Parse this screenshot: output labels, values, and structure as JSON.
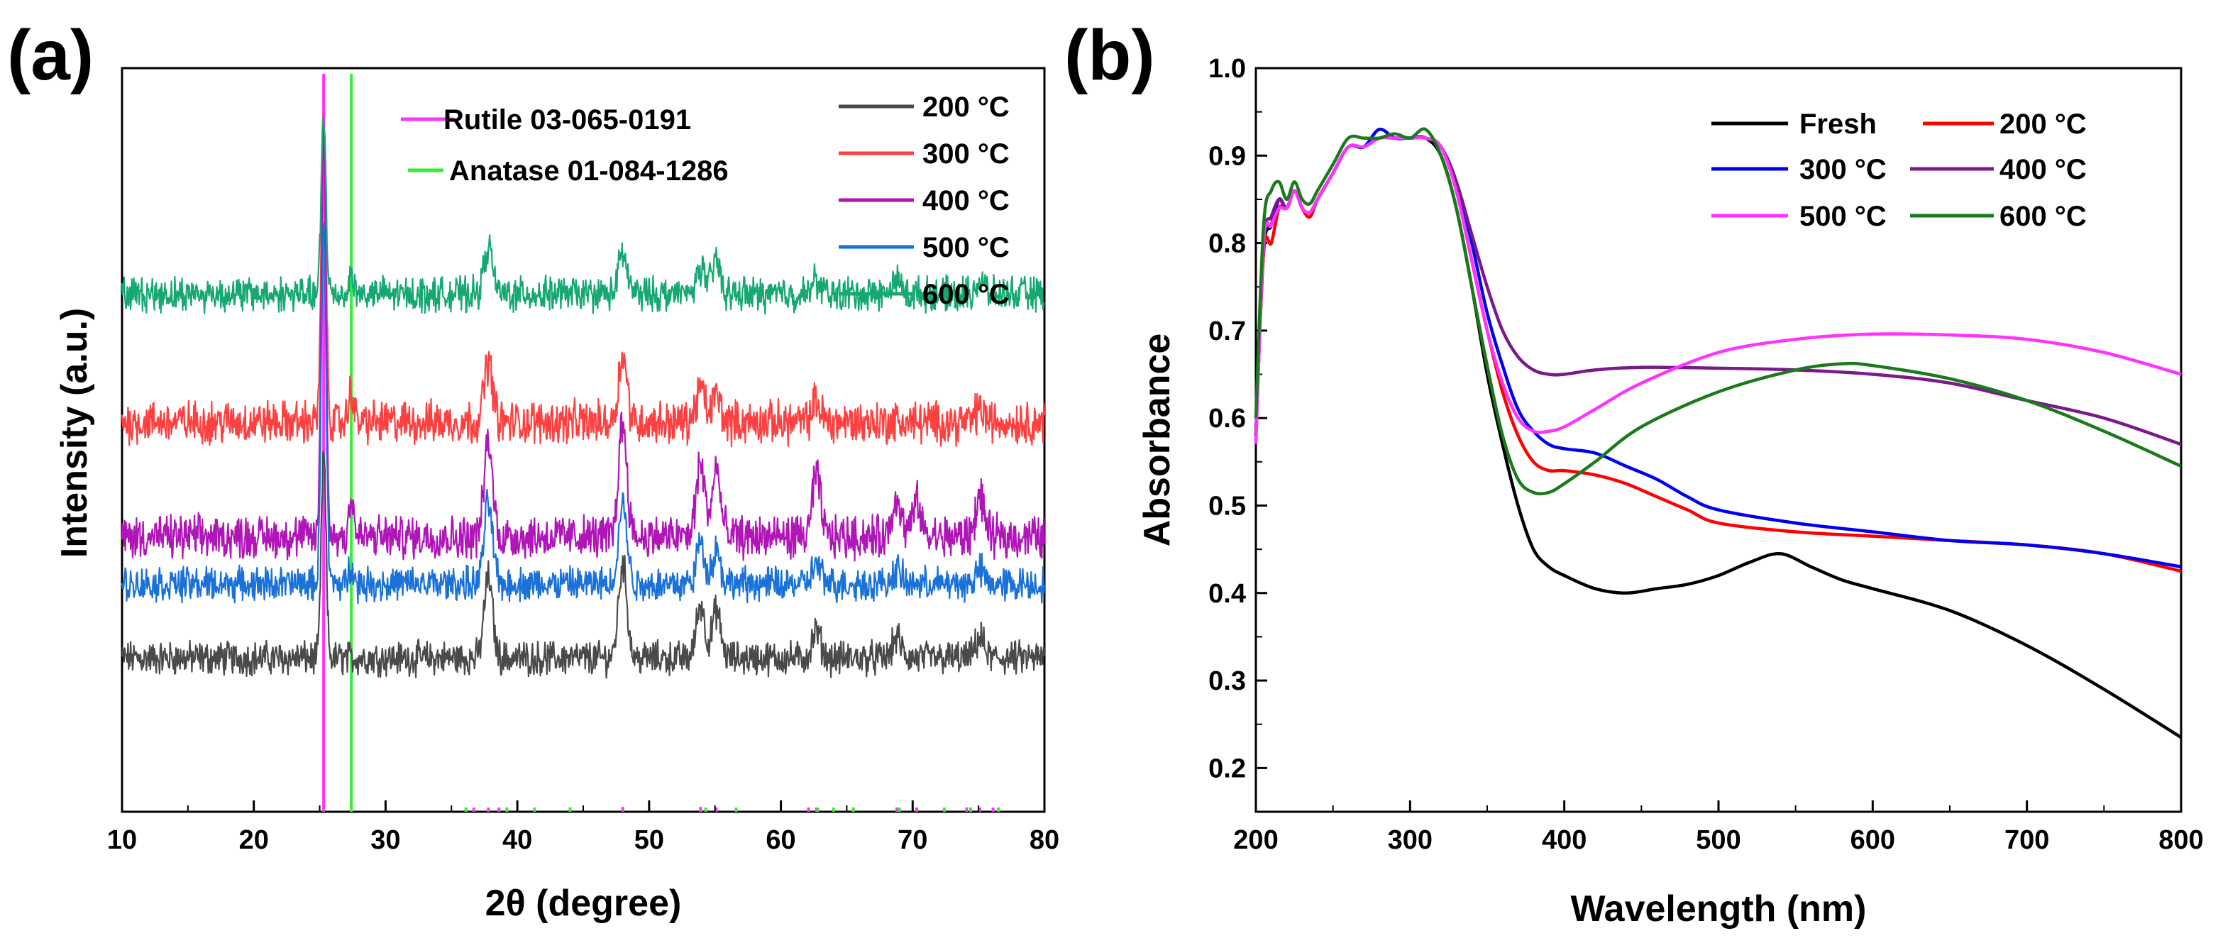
{
  "chart_data": [
    {
      "panel": "(a)",
      "type": "line",
      "subtype": "stacked XRD patterns with reference stick pattern",
      "title": "",
      "xlabel": "2θ (degree)",
      "ylabel": "Intensity (a.u.)",
      "xlim": [
        10,
        80
      ],
      "x_ticks": [
        10,
        20,
        30,
        40,
        50,
        60,
        70,
        80
      ],
      "y_ticks_shown": false,
      "units": "a.u.",
      "legend_location": "top-right",
      "series": [
        {
          "name": "200 °C",
          "color": "#4a4a4a",
          "baseline": 0.15,
          "noise": 0.02,
          "peaks": [
            [
              25.3,
              0.3
            ],
            [
              37.8,
              0.12
            ],
            [
              48.0,
              0.14
            ],
            [
              53.9,
              0.08
            ],
            [
              55.1,
              0.07
            ],
            [
              62.7,
              0.04
            ],
            [
              68.8,
              0.03
            ],
            [
              75.1,
              0.03
            ]
          ]
        },
        {
          "name": "300 °C",
          "color": "#ff4040",
          "baseline": 0.5,
          "noise": 0.025,
          "peaks": [
            [
              25.3,
              0.45
            ],
            [
              27.4,
              0.05
            ],
            [
              37.8,
              0.09
            ],
            [
              48.0,
              0.1
            ],
            [
              53.9,
              0.05
            ],
            [
              55.1,
              0.04
            ],
            [
              62.7,
              0.03
            ],
            [
              75.1,
              0.02
            ]
          ]
        },
        {
          "name": "400 °C",
          "color": "#b015b8",
          "baseline": 0.33,
          "noise": 0.025,
          "peaks": [
            [
              25.3,
              0.6
            ],
            [
              27.4,
              0.06
            ],
            [
              37.8,
              0.14
            ],
            [
              48.0,
              0.17
            ],
            [
              53.9,
              0.11
            ],
            [
              55.1,
              0.1
            ],
            [
              62.7,
              0.09
            ],
            [
              68.8,
              0.06
            ],
            [
              70.3,
              0.05
            ],
            [
              75.1,
              0.06
            ]
          ]
        },
        {
          "name": "500 °C",
          "color": "#1a72d9",
          "baseline": 0.26,
          "noise": 0.02,
          "peaks": [
            [
              25.3,
              0.55
            ],
            [
              27.4,
              0.03
            ],
            [
              37.8,
              0.12
            ],
            [
              48.0,
              0.12
            ],
            [
              53.9,
              0.06
            ],
            [
              55.1,
              0.05
            ],
            [
              62.7,
              0.03
            ],
            [
              68.8,
              0.02
            ],
            [
              75.1,
              0.02
            ]
          ]
        },
        {
          "name": "600 °C",
          "color": "#17a872",
          "baseline": 0.69,
          "noise": 0.02,
          "peaks": [
            [
              25.3,
              0.26
            ],
            [
              27.4,
              0.03
            ],
            [
              37.8,
              0.07
            ],
            [
              48.0,
              0.06
            ],
            [
              53.9,
              0.04
            ],
            [
              55.1,
              0.05
            ],
            [
              62.7,
              0.02
            ],
            [
              68.8,
              0.02
            ],
            [
              75.1,
              0.02
            ]
          ]
        }
      ],
      "reference_patterns": [
        {
          "name": "Rutile 03-065-0191",
          "color": "#ff33ff",
          "positions": [
            25.3,
            36.7,
            37.8,
            38.6,
            48.0,
            53.9,
            55.1,
            62.1,
            62.7,
            68.8,
            70.3,
            74.1,
            75.1,
            76.1
          ],
          "intensities": [
            100,
            3,
            10,
            4,
            12,
            12,
            10,
            2,
            5,
            2,
            2,
            1,
            4,
            1
          ]
        },
        {
          "name": "Anatase 01-084-1286",
          "color": "#33ee33",
          "positions": [
            27.4,
            36.1,
            39.2,
            41.3,
            44.0,
            54.3,
            56.6,
            62.8,
            64.0,
            65.5,
            69.0,
            72.4,
            74.4,
            76.5
          ],
          "intensities": [
            100,
            5,
            7,
            6,
            11,
            7,
            8,
            3,
            7,
            2,
            2,
            3,
            1,
            1
          ]
        }
      ]
    },
    {
      "panel": "(b)",
      "type": "line",
      "title": "",
      "xlabel": "Wavelength (nm)",
      "ylabel": "Absorbance",
      "xlim": [
        200,
        800
      ],
      "ylim": [
        0.15,
        1.0
      ],
      "x_ticks": [
        200,
        300,
        400,
        500,
        600,
        700,
        800
      ],
      "y_ticks": [
        0.2,
        0.3,
        0.4,
        0.5,
        0.6,
        0.7,
        0.8,
        0.9,
        1.0
      ],
      "legend_location": "top-right",
      "series": [
        {
          "name": "Fresh",
          "color": "#000000",
          "x": [
            200,
            205,
            210,
            215,
            220,
            225,
            230,
            235,
            240,
            250,
            260,
            270,
            280,
            290,
            300,
            310,
            320,
            330,
            340,
            350,
            360,
            370,
            380,
            390,
            400,
            420,
            440,
            460,
            480,
            500,
            520,
            540,
            560,
            580,
            600,
            650,
            700,
            750,
            800
          ],
          "y": [
            0.58,
            0.79,
            0.82,
            0.85,
            0.84,
            0.86,
            0.84,
            0.83,
            0.85,
            0.88,
            0.91,
            0.91,
            0.92,
            0.92,
            0.92,
            0.92,
            0.9,
            0.84,
            0.75,
            0.65,
            0.57,
            0.5,
            0.45,
            0.43,
            0.42,
            0.405,
            0.4,
            0.405,
            0.41,
            0.42,
            0.435,
            0.445,
            0.43,
            0.415,
            0.405,
            0.38,
            0.34,
            0.29,
            0.235
          ]
        },
        {
          "name": "200 °C",
          "color": "#ff0000",
          "x": [
            200,
            205,
            210,
            215,
            220,
            225,
            230,
            235,
            240,
            250,
            260,
            270,
            280,
            290,
            300,
            310,
            320,
            330,
            340,
            350,
            360,
            370,
            380,
            390,
            400,
            420,
            440,
            460,
            480,
            500,
            550,
            600,
            650,
            700,
            750,
            800
          ],
          "y": [
            0.58,
            0.79,
            0.8,
            0.84,
            0.84,
            0.86,
            0.84,
            0.83,
            0.85,
            0.88,
            0.91,
            0.91,
            0.92,
            0.92,
            0.92,
            0.92,
            0.91,
            0.86,
            0.78,
            0.7,
            0.63,
            0.58,
            0.55,
            0.54,
            0.54,
            0.535,
            0.525,
            0.51,
            0.495,
            0.48,
            0.47,
            0.465,
            0.46,
            0.455,
            0.445,
            0.425
          ]
        },
        {
          "name": "300 °C",
          "color": "#0000ee",
          "x": [
            200,
            205,
            210,
            215,
            220,
            225,
            230,
            235,
            240,
            250,
            260,
            270,
            280,
            290,
            300,
            310,
            320,
            330,
            340,
            350,
            360,
            370,
            380,
            390,
            400,
            420,
            440,
            460,
            480,
            500,
            550,
            600,
            650,
            700,
            750,
            800
          ],
          "y": [
            0.58,
            0.8,
            0.82,
            0.85,
            0.84,
            0.86,
            0.84,
            0.835,
            0.85,
            0.88,
            0.91,
            0.91,
            0.93,
            0.92,
            0.92,
            0.92,
            0.91,
            0.87,
            0.8,
            0.72,
            0.66,
            0.61,
            0.585,
            0.57,
            0.565,
            0.56,
            0.545,
            0.53,
            0.51,
            0.495,
            0.48,
            0.47,
            0.46,
            0.455,
            0.445,
            0.43
          ]
        },
        {
          "name": "400 °C",
          "color": "#7a1a8a",
          "x": [
            200,
            205,
            210,
            215,
            220,
            225,
            230,
            235,
            240,
            250,
            260,
            270,
            280,
            290,
            300,
            310,
            320,
            330,
            340,
            350,
            360,
            370,
            380,
            390,
            400,
            420,
            450,
            500,
            550,
            600,
            650,
            700,
            750,
            800
          ],
          "y": [
            0.58,
            0.8,
            0.83,
            0.85,
            0.84,
            0.86,
            0.84,
            0.835,
            0.85,
            0.88,
            0.91,
            0.91,
            0.92,
            0.92,
            0.92,
            0.92,
            0.91,
            0.87,
            0.81,
            0.75,
            0.7,
            0.67,
            0.655,
            0.65,
            0.65,
            0.655,
            0.658,
            0.657,
            0.655,
            0.65,
            0.64,
            0.62,
            0.6,
            0.57
          ]
        },
        {
          "name": "500 °C",
          "color": "#ff33ff",
          "x": [
            200,
            205,
            210,
            215,
            220,
            225,
            230,
            235,
            240,
            250,
            260,
            270,
            280,
            290,
            300,
            310,
            320,
            330,
            340,
            350,
            360,
            370,
            380,
            390,
            400,
            420,
            450,
            500,
            550,
            600,
            650,
            700,
            750,
            800
          ],
          "y": [
            0.57,
            0.8,
            0.82,
            0.84,
            0.84,
            0.86,
            0.84,
            0.835,
            0.85,
            0.88,
            0.91,
            0.91,
            0.92,
            0.92,
            0.92,
            0.92,
            0.91,
            0.86,
            0.78,
            0.7,
            0.64,
            0.6,
            0.585,
            0.585,
            0.59,
            0.61,
            0.64,
            0.675,
            0.69,
            0.696,
            0.695,
            0.69,
            0.675,
            0.65
          ]
        },
        {
          "name": "600 °C",
          "color": "#1b7a1b",
          "x": [
            200,
            205,
            210,
            215,
            220,
            225,
            230,
            235,
            240,
            250,
            260,
            270,
            280,
            290,
            300,
            310,
            320,
            330,
            340,
            350,
            360,
            370,
            380,
            390,
            400,
            420,
            450,
            500,
            550,
            580,
            600,
            650,
            700,
            750,
            800
          ],
          "y": [
            0.6,
            0.82,
            0.86,
            0.87,
            0.85,
            0.87,
            0.85,
            0.845,
            0.86,
            0.89,
            0.92,
            0.92,
            0.92,
            0.925,
            0.92,
            0.93,
            0.9,
            0.84,
            0.75,
            0.66,
            0.58,
            0.53,
            0.515,
            0.515,
            0.525,
            0.55,
            0.59,
            0.63,
            0.655,
            0.662,
            0.66,
            0.645,
            0.62,
            0.585,
            0.545
          ]
        }
      ]
    }
  ],
  "panels": {
    "a": {
      "letter": "(a)",
      "xlabel": "2θ (degree)",
      "ylabel": "Intensity (a.u.)",
      "x_tick_labels": [
        "10",
        "20",
        "30",
        "40",
        "50",
        "60",
        "70",
        "80"
      ],
      "reference_legend": [
        "Rutile 03-065-0191",
        "Anatase 01-084-1286"
      ],
      "series_legend": [
        "200 °C",
        "300 °C",
        "400 °C",
        "500 °C",
        "600 °C"
      ]
    },
    "b": {
      "letter": "(b)",
      "xlabel": "Wavelength (nm)",
      "ylabel": "Absorbance",
      "x_tick_labels": [
        "200",
        "300",
        "400",
        "500",
        "600",
        "700",
        "800"
      ],
      "y_tick_labels": [
        "0.2",
        "0.3",
        "0.4",
        "0.5",
        "0.6",
        "0.7",
        "0.8",
        "0.9",
        "1.0"
      ],
      "legend": [
        "Fresh",
        "200 °C",
        "300 °C",
        "400 °C",
        "500 °C",
        "600 °C"
      ]
    }
  }
}
